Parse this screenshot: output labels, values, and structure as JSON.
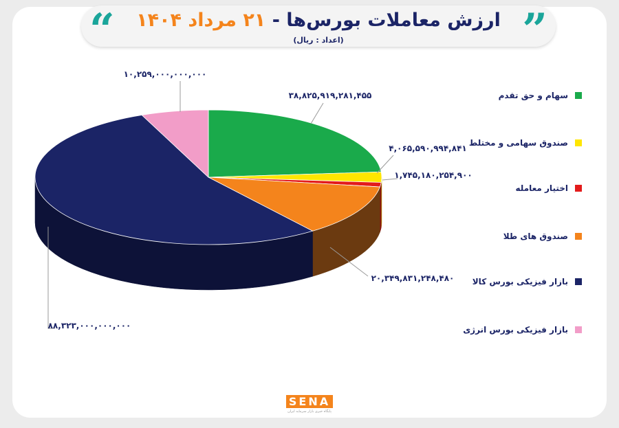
{
  "chart_data": {
    "type": "pie3d",
    "title": "ارزش معاملات بورس‌ها -",
    "title_date": "۲۱ مرداد ۱۴۰۴",
    "subtitle": "(اعداد : ریال)",
    "categories": [
      "سهام و حق تقدم",
      "صندوق سهامی و مختلط",
      "اختیار معامله",
      "صندوق های طلا",
      "بازار فیزیکی بورس کالا",
      "بازار فیزیکی بورس انرژی"
    ],
    "values": [
      38825919281455,
      4065590994841,
      1745180254900,
      20349831248480,
      88323000000000,
      10259000000000
    ],
    "value_labels": [
      "۳۸,۸۲۵,۹۱۹,۲۸۱,۴۵۵",
      "۴,۰۶۵,۵۹۰,۹۹۴,۸۴۱",
      "۱,۷۴۵,۱۸۰,۲۵۴,۹۰۰",
      "۲۰,۳۴۹,۸۳۱,۲۴۸,۴۸۰",
      "۸۸,۳۲۳,۰۰۰,۰۰۰,۰۰۰",
      "۱۰,۲۵۹,۰۰۰,۰۰۰,۰۰۰"
    ],
    "colors": [
      "#1aaa4b",
      "#ffe600",
      "#e31b1b",
      "#f4841c",
      "#1b2466",
      "#f29dc8"
    ],
    "side_colors": [
      "#0f6b2e",
      "#b3a000",
      "#8e0f0f",
      "#6b3a10",
      "#0d1238",
      "#a86786"
    ],
    "logo": "SENA",
    "logo_caption": "پایگاه خبری بازار سرمایه ایران"
  }
}
